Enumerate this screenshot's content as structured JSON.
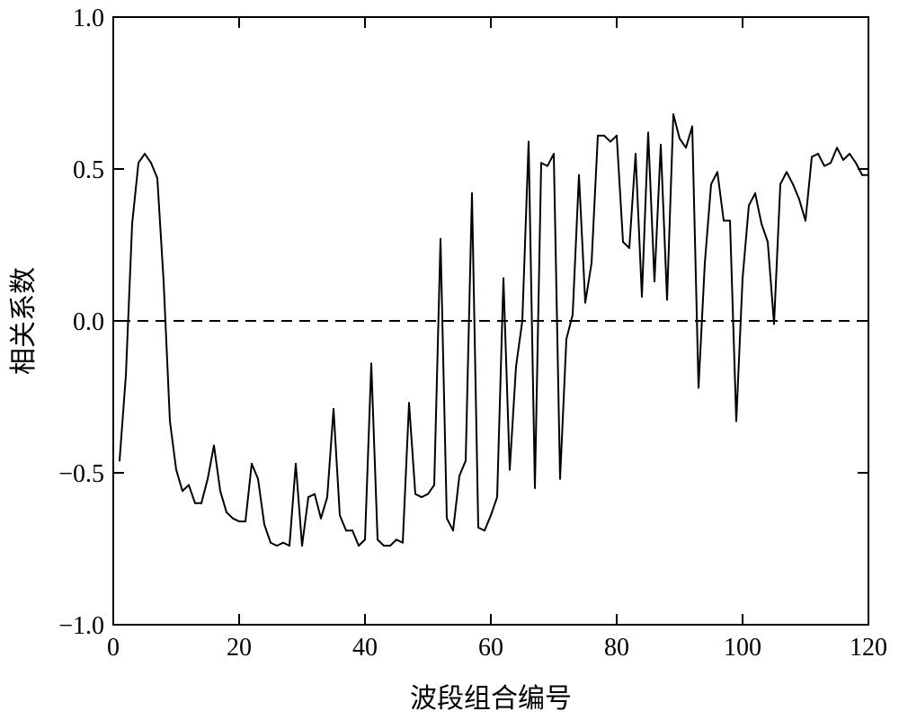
{
  "chart_data": {
    "type": "line",
    "xlabel": "波段组合编号",
    "ylabel": "相关系数",
    "xlim": [
      0,
      120
    ],
    "ylim": [
      -1.0,
      1.0
    ],
    "x_ticks": [
      0,
      20,
      40,
      60,
      80,
      100,
      120
    ],
    "x_tick_labels": [
      "0",
      "20",
      "40",
      "60",
      "80",
      "100",
      "120"
    ],
    "y_ticks": [
      -1.0,
      -0.5,
      0.0,
      0.5,
      1.0
    ],
    "y_tick_labels": [
      "−1.0",
      "−0.5",
      "0.0",
      "0.5",
      "1.0"
    ],
    "grid": false,
    "reference_line": {
      "y": 0.0,
      "style": "dashed",
      "x_range": [
        1,
        120
      ]
    },
    "series": [
      {
        "color": "#000000",
        "x": [
          1,
          2,
          3,
          4,
          5,
          6,
          7,
          8,
          9,
          10,
          11,
          12,
          13,
          14,
          15,
          16,
          17,
          18,
          19,
          20,
          21,
          22,
          23,
          24,
          25,
          26,
          27,
          28,
          29,
          30,
          31,
          32,
          33,
          34,
          35,
          36,
          37,
          38,
          39,
          40,
          41,
          42,
          43,
          44,
          45,
          46,
          47,
          48,
          49,
          50,
          51,
          52,
          53,
          54,
          55,
          56,
          57,
          58,
          59,
          60,
          61,
          62,
          63,
          64,
          65,
          66,
          67,
          68,
          69,
          70,
          71,
          72,
          73,
          74,
          75,
          76,
          77,
          78,
          79,
          80,
          81,
          82,
          83,
          84,
          85,
          86,
          87,
          88,
          89,
          90,
          91,
          92,
          93,
          94,
          95,
          96,
          97,
          98,
          99,
          100,
          101,
          102,
          103,
          104,
          105,
          106,
          107,
          108,
          109,
          110,
          111,
          112,
          113,
          114,
          115,
          116,
          117,
          118,
          119,
          120
        ],
        "y": [
          -0.46,
          -0.18,
          0.32,
          0.52,
          0.55,
          0.52,
          0.47,
          0.13,
          -0.33,
          -0.49,
          -0.56,
          -0.54,
          -0.6,
          -0.6,
          -0.52,
          -0.41,
          -0.56,
          -0.63,
          -0.65,
          -0.66,
          -0.66,
          -0.47,
          -0.52,
          -0.67,
          -0.73,
          -0.74,
          -0.73,
          -0.74,
          -0.47,
          -0.74,
          -0.58,
          -0.57,
          -0.65,
          -0.58,
          -0.29,
          -0.64,
          -0.69,
          -0.69,
          -0.74,
          -0.72,
          -0.14,
          -0.72,
          -0.74,
          -0.74,
          -0.72,
          -0.73,
          -0.27,
          -0.57,
          -0.58,
          -0.57,
          -0.54,
          0.27,
          -0.65,
          -0.69,
          -0.51,
          -0.46,
          0.42,
          -0.68,
          -0.69,
          -0.64,
          -0.58,
          0.14,
          -0.49,
          -0.15,
          0.0,
          0.59,
          -0.55,
          0.52,
          0.51,
          0.55,
          -0.52,
          -0.06,
          0.02,
          0.48,
          0.06,
          0.19,
          0.61,
          0.61,
          0.59,
          0.61,
          0.26,
          0.24,
          0.55,
          0.08,
          0.62,
          0.13,
          0.58,
          0.07,
          0.68,
          0.6,
          0.57,
          0.64,
          -0.22,
          0.19,
          0.45,
          0.49,
          0.33,
          0.33,
          -0.33,
          0.14,
          0.38,
          0.42,
          0.32,
          0.26,
          -0.01,
          0.45,
          0.49,
          0.45,
          0.4,
          0.33,
          0.54,
          0.55,
          0.51,
          0.52,
          0.57,
          0.53,
          0.55,
          0.52,
          0.48,
          0.48
        ]
      }
    ]
  }
}
